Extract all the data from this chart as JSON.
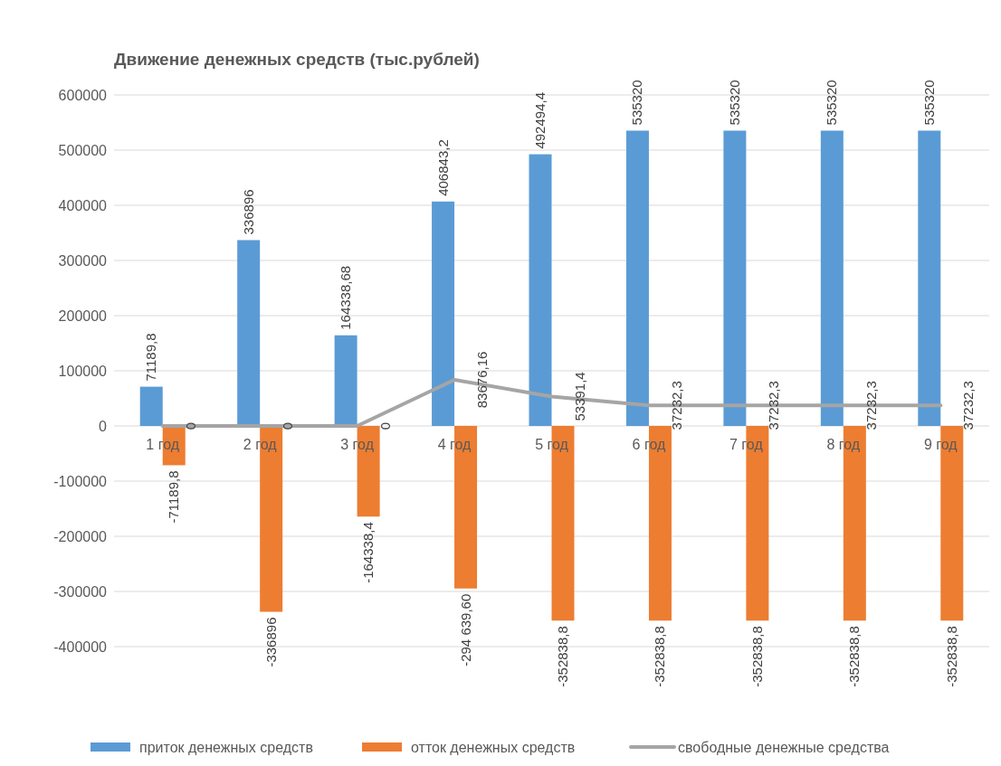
{
  "chart_data": {
    "type": "bar",
    "title": "Движение денежных средств (тыс.рублей)",
    "categories": [
      "1 год",
      "2 год",
      "3 год",
      "4 год",
      "5 год",
      "6 год",
      "7 год",
      "8 год",
      "9 год"
    ],
    "series": [
      {
        "name": "приток денежных средств",
        "color": "#5b9bd5",
        "values": [
          71189.8,
          336896,
          164338.68,
          406843.2,
          492494.4,
          535320,
          535320,
          535320,
          535320
        ],
        "value_labels": [
          "71189,8",
          "336896",
          "164338,68",
          "406843,2",
          "492494,4",
          "535320",
          "535320",
          "535320",
          "535320"
        ]
      },
      {
        "name": "отток денежных средств",
        "color": "#ed7d31",
        "values": [
          -71189.8,
          -336896,
          -164338.4,
          -294639.6,
          -352838.8,
          -352838.8,
          -352838.8,
          -352838.8,
          -352838.8
        ],
        "value_labels": [
          "-71189,8",
          "-336896",
          "-164338,4",
          "-294 639,60",
          "-352838,8",
          "-352838,8",
          "-352838,8",
          "-352838,8",
          "-352838,8"
        ]
      },
      {
        "name": "свободные денежные средства",
        "type": "line",
        "color": "#a5a5a5",
        "values": [
          0,
          0,
          0,
          83676.16,
          53391.4,
          37232.3,
          37232.3,
          37232.3,
          37232.3
        ],
        "value_labels": [
          "0",
          "0",
          "0",
          "83676,16",
          "53391,4",
          "37232,3",
          "37232,3",
          "37232,3",
          "37232,3"
        ]
      }
    ],
    "ylim": [
      -400000,
      600000
    ],
    "yticks": [
      {
        "value": -400000,
        "label": "-400000"
      },
      {
        "value": -300000,
        "label": "-300000"
      },
      {
        "value": -200000,
        "label": "-200000"
      },
      {
        "value": -100000,
        "label": "-100000"
      },
      0,
      100000,
      200000,
      300000,
      400000,
      500000,
      600000
    ],
    "grid": "y",
    "legend": "bottom"
  }
}
